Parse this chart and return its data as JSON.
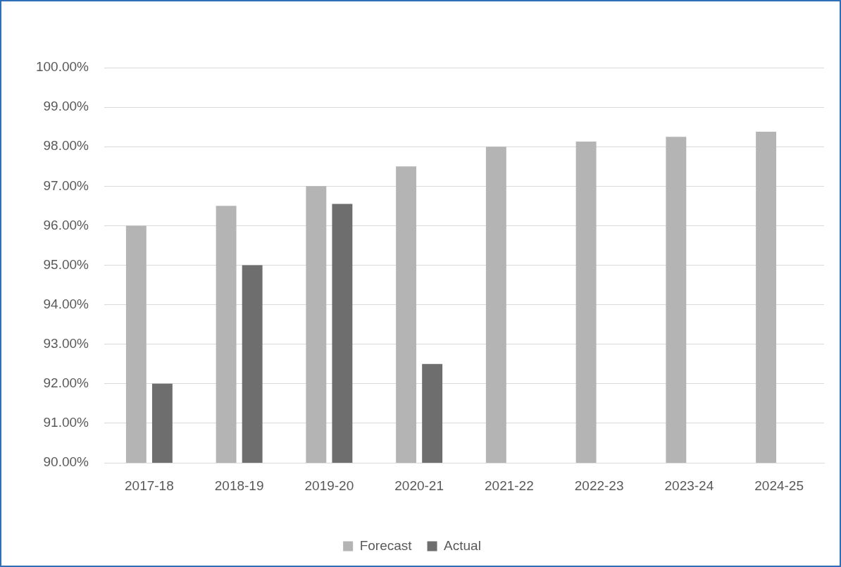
{
  "chart_data": {
    "type": "bar",
    "categories": [
      "2017-18",
      "2018-19",
      "2019-20",
      "2020-21",
      "2021-22",
      "2022-23",
      "2023-24",
      "2024-25"
    ],
    "series": [
      {
        "name": "Forecast",
        "color": "#b4b4b4",
        "values": [
          96.0,
          96.5,
          97.0,
          97.5,
          98.0,
          98.13,
          98.25,
          98.38
        ]
      },
      {
        "name": "Actual",
        "color": "#6e6e6e",
        "values": [
          92.0,
          95.0,
          96.55,
          92.5,
          null,
          null,
          null,
          null
        ]
      }
    ],
    "ylim": [
      90,
      100
    ],
    "yticks": [
      {
        "value": 90,
        "label": "90.00%"
      },
      {
        "value": 91,
        "label": "91.00%"
      },
      {
        "value": 92,
        "label": "92.00%"
      },
      {
        "value": 93,
        "label": "93.00%"
      },
      {
        "value": 94,
        "label": "94.00%"
      },
      {
        "value": 95,
        "label": "95.00%"
      },
      {
        "value": 96,
        "label": "96.00%"
      },
      {
        "value": 97,
        "label": "97.00%"
      },
      {
        "value": 98,
        "label": "98.00%"
      },
      {
        "value": 99,
        "label": "99.00%"
      },
      {
        "value": 100,
        "label": "100.00%"
      }
    ],
    "grid": "y",
    "legend": "bottom"
  }
}
